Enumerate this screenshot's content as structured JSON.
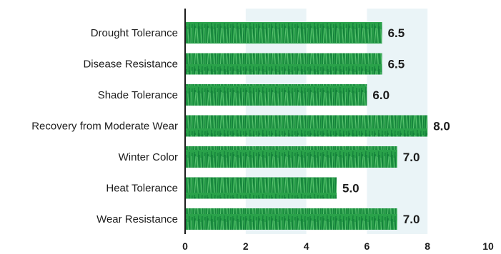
{
  "chart_data": {
    "type": "bar",
    "orientation": "horizontal",
    "categories": [
      "Drought Tolerance",
      "Disease Resistance",
      "Shade Tolerance",
      "Recovery from Moderate Wear",
      "Winter Color",
      "Heat Tolerance",
      "Wear Resistance"
    ],
    "values": [
      6.5,
      6.5,
      6.0,
      8.0,
      7.0,
      5.0,
      7.0
    ],
    "value_labels": [
      "6.5",
      "6.5",
      "6.0",
      "8.0",
      "7.0",
      "5.0",
      "7.0"
    ],
    "xlim": [
      0,
      10
    ],
    "xticks": [
      "0",
      "2",
      "4",
      "6",
      "8",
      "10"
    ],
    "grid": "alternating vertical bands",
    "colors": {
      "bar": "#2aa24a",
      "bar_dark": "#13803a",
      "bar_light": "#5cc472",
      "band": "#eaf4f7",
      "axis": "#1c1c1c"
    }
  }
}
